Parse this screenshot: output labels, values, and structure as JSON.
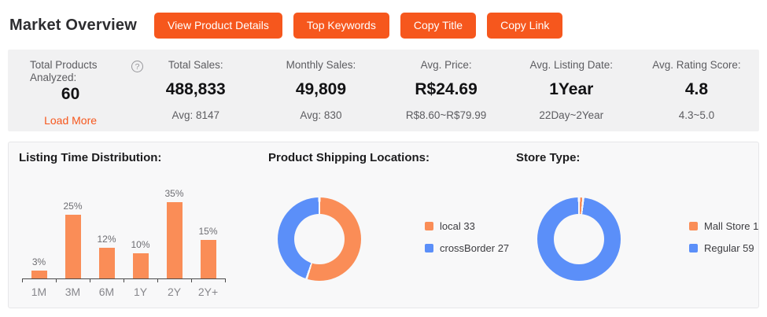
{
  "colors": {
    "accent": "#F6571D",
    "chart_orange": "#FA8D57",
    "chart_blue": "#5B8FF9",
    "stats_bg": "#F1F1F2",
    "panel_bg": "#F8F8F9",
    "panel_border": "#E7E7E9"
  },
  "icons": {
    "help": "?"
  },
  "header": {
    "title": "Market Overview",
    "buttons": [
      {
        "label": "View Product Details"
      },
      {
        "label": "Top Keywords"
      },
      {
        "label": "Copy Title"
      },
      {
        "label": "Copy Link"
      }
    ]
  },
  "stats": [
    {
      "label": "Total Products Analyzed:",
      "value": "60",
      "sub": "Load More"
    },
    {
      "label": "Total Sales:",
      "value": "488,833",
      "sub": "Avg: 8147"
    },
    {
      "label": "Monthly Sales:",
      "value": "49,809",
      "sub": "Avg: 830"
    },
    {
      "label": "Avg. Price:",
      "value": "R$24.69",
      "sub": "R$8.60~R$79.99"
    },
    {
      "label": "Avg. Listing Date:",
      "value": "1Year",
      "sub": "22Day~2Year"
    },
    {
      "label": "Avg. Rating Score:",
      "value": "4.8",
      "sub": "4.3~5.0"
    }
  ],
  "chart_data": [
    {
      "type": "bar",
      "title": "Listing Time Distribution:",
      "categories": [
        "1M",
        "3M",
        "6M",
        "1Y",
        "2Y",
        "2Y+"
      ],
      "values": [
        3,
        25,
        12,
        10,
        35,
        15
      ],
      "unit": "%",
      "bar_color": "#FA8D57",
      "ylim": [
        0,
        30
      ],
      "grid": false,
      "xlabel": "",
      "ylabel": ""
    },
    {
      "type": "donut",
      "title": "Product Shipping Locations:",
      "segments": [
        {
          "label": "local",
          "value": 33,
          "color": "#FA8D57"
        },
        {
          "label": "crossBorder",
          "value": 27,
          "color": "#5B8FF9"
        }
      ],
      "legend_position": "right"
    },
    {
      "type": "donut",
      "title": "Store Type:",
      "segments": [
        {
          "label": "Mall Store",
          "value": 1,
          "color": "#FA8D57"
        },
        {
          "label": "Regular",
          "value": 59,
          "color": "#5B8FF9"
        }
      ],
      "legend_position": "right"
    }
  ]
}
